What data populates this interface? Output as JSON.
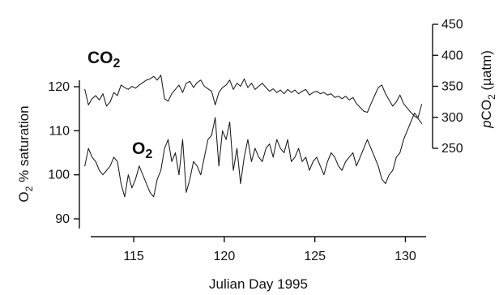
{
  "chart_data": {
    "type": "line",
    "xlabel": "Julian Day 1995",
    "x_ticks": [
      "115",
      "120",
      "125",
      "130"
    ],
    "x_tick_values": [
      115,
      120,
      125,
      130
    ],
    "xlim": [
      112,
      131.5
    ],
    "y_left": {
      "label_main": "O",
      "label_sub": "2",
      "label_rest": " % saturation",
      "ticks": [
        "90",
        "100",
        "110",
        "120"
      ],
      "tick_values": [
        90,
        100,
        110,
        120
      ],
      "ylim": [
        85,
        130
      ]
    },
    "y_right": {
      "label_prefix": "p",
      "label_main": "CO",
      "label_sub": "2",
      "label_rest": " (µatm)",
      "ticks": [
        "250",
        "300",
        "350",
        "400",
        "450"
      ],
      "tick_values": [
        250,
        300,
        350,
        400,
        450
      ],
      "ylim": [
        250,
        450
      ]
    },
    "series": [
      {
        "name": "CO2",
        "label_main": "CO",
        "label_sub": "2",
        "axis": "right",
        "color": "#1a1a1a",
        "x": [
          112.3,
          112.5,
          112.7,
          112.9,
          113.1,
          113.3,
          113.5,
          113.7,
          113.9,
          114.1,
          114.3,
          114.5,
          114.7,
          114.9,
          115.1,
          115.3,
          115.5,
          115.7,
          115.9,
          116.1,
          116.3,
          116.5,
          116.7,
          116.9,
          117.1,
          117.3,
          117.5,
          117.7,
          117.9,
          118.1,
          118.3,
          118.5,
          118.7,
          118.9,
          119.1,
          119.3,
          119.5,
          119.7,
          119.9,
          120.1,
          120.3,
          120.5,
          120.7,
          120.9,
          121.1,
          121.3,
          121.5,
          121.7,
          121.9,
          122.1,
          122.3,
          122.5,
          122.7,
          122.9,
          123.1,
          123.3,
          123.5,
          123.7,
          123.9,
          124.1,
          124.3,
          124.5,
          124.7,
          124.9,
          125.1,
          125.3,
          125.5,
          125.7,
          125.9,
          126.1,
          126.3,
          126.5,
          126.7,
          126.9,
          127.1,
          127.3,
          127.5,
          127.7,
          127.9,
          128.1,
          128.3,
          128.5,
          128.7,
          128.9,
          129.1,
          129.3,
          129.5,
          129.7,
          129.9,
          130.1,
          130.3,
          130.5,
          130.7,
          130.9
        ],
        "values": [
          345,
          320,
          330,
          335,
          328,
          338,
          318,
          325,
          340,
          335,
          352,
          348,
          345,
          350,
          347,
          352,
          356,
          360,
          362,
          366,
          360,
          368,
          330,
          326,
          338,
          345,
          352,
          340,
          355,
          358,
          348,
          356,
          360,
          350,
          346,
          342,
          320,
          340,
          348,
          352,
          360,
          345,
          355,
          350,
          362,
          348,
          355,
          345,
          350,
          355,
          348,
          342,
          346,
          340,
          344,
          338,
          345,
          340,
          344,
          338,
          342,
          345,
          336,
          340,
          342,
          338,
          340,
          336,
          338,
          332,
          334,
          330,
          334,
          328,
          332,
          322,
          316,
          310,
          308,
          322,
          335,
          348,
          352,
          338,
          328,
          318,
          325,
          336,
          322,
          315,
          308,
          302,
          298,
          290
        ]
      },
      {
        "name": "O2",
        "label_main": "O",
        "label_sub": "2",
        "axis": "left",
        "color": "#1a1a1a",
        "x": [
          112.3,
          112.5,
          112.7,
          112.9,
          113.1,
          113.3,
          113.5,
          113.7,
          113.9,
          114.1,
          114.3,
          114.5,
          114.7,
          114.9,
          115.1,
          115.3,
          115.5,
          115.7,
          115.9,
          116.1,
          116.3,
          116.5,
          116.7,
          116.9,
          117.1,
          117.3,
          117.5,
          117.7,
          117.9,
          118.1,
          118.3,
          118.5,
          118.7,
          118.9,
          119.1,
          119.3,
          119.5,
          119.7,
          119.9,
          120.1,
          120.3,
          120.5,
          120.7,
          120.9,
          121.1,
          121.3,
          121.5,
          121.7,
          121.9,
          122.1,
          122.3,
          122.5,
          122.7,
          122.9,
          123.1,
          123.3,
          123.5,
          123.7,
          123.9,
          124.1,
          124.3,
          124.5,
          124.7,
          124.9,
          125.1,
          125.3,
          125.5,
          125.7,
          125.9,
          126.1,
          126.3,
          126.5,
          126.7,
          126.9,
          127.1,
          127.3,
          127.5,
          127.7,
          127.9,
          128.1,
          128.3,
          128.5,
          128.7,
          128.9,
          129.1,
          129.3,
          129.5,
          129.7,
          129.9,
          130.1,
          130.3,
          130.5,
          130.7,
          130.9
        ],
        "values": [
          102,
          106,
          104,
          103,
          101,
          100,
          101,
          102,
          104,
          103,
          98,
          95,
          100,
          97,
          99,
          102,
          100,
          98,
          96,
          95,
          99,
          101,
          106,
          108,
          103,
          105,
          100,
          108,
          96,
          99,
          103,
          102,
          100,
          104,
          108,
          109,
          113,
          102,
          110,
          108,
          112,
          101,
          106,
          98,
          104,
          108,
          103,
          106,
          104,
          103,
          106,
          107,
          104,
          108,
          106,
          105,
          108,
          103,
          104,
          106,
          103,
          104,
          101,
          103,
          104,
          102,
          100,
          103,
          105,
          104,
          102,
          101,
          103,
          104,
          105,
          102,
          104,
          106,
          108,
          106,
          104,
          102,
          99,
          98,
          100,
          101,
          104,
          105,
          108,
          110,
          112,
          114,
          113,
          116
        ]
      }
    ]
  }
}
